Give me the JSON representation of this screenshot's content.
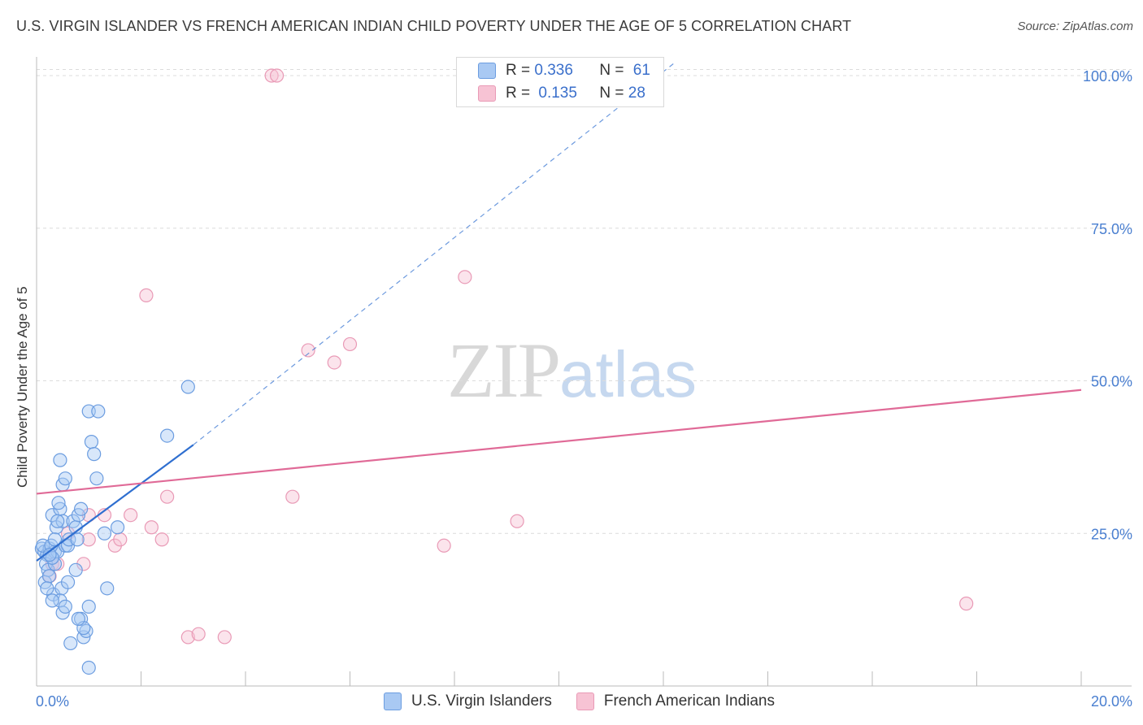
{
  "title": "U.S. VIRGIN ISLANDER VS FRENCH AMERICAN INDIAN CHILD POVERTY UNDER THE AGE OF 5 CORRELATION CHART",
  "source": "Source: ZipAtlas.com",
  "watermark": {
    "zip": "ZIP",
    "atlas": "atlas"
  },
  "colors": {
    "blue_fill": "#a9c9f3",
    "blue_stroke": "#6c9de0",
    "blue_line": "#2f6fd0",
    "pink_fill": "#f7c3d4",
    "pink_stroke": "#e99ab6",
    "pink_line": "#e06a97",
    "tick": "#4a7fd0"
  },
  "legend": {
    "rows": [
      {
        "r_label": "R =",
        "r_value": "0.336",
        "n_label": "N =",
        "n_value": "61"
      },
      {
        "r_label": "R =",
        "r_value": "0.135",
        "n_label": "N =",
        "n_value": "28"
      }
    ]
  },
  "bottom_legend": [
    "U.S. Virgin Islanders",
    "French American Indians"
  ],
  "chart_data": {
    "type": "scatter",
    "title": "U.S. VIRGIN ISLANDER VS FRENCH AMERICAN INDIAN CHILD POVERTY UNDER THE AGE OF 5 CORRELATION CHART",
    "xlabel": "",
    "ylabel": "Child Poverty Under the Age of 5",
    "xlim": [
      0,
      20
    ],
    "ylim": [
      0,
      102
    ],
    "x_tick_labels": [
      "0.0%",
      "20.0%"
    ],
    "y_ticks": [
      25,
      50,
      75,
      100
    ],
    "y_tick_labels": [
      "25.0%",
      "50.0%",
      "75.0%",
      "100.0%"
    ],
    "series": [
      {
        "name": "U.S. Virgin Islanders",
        "points": [
          [
            0.1,
            22.5
          ],
          [
            0.15,
            22
          ],
          [
            0.2,
            21.5
          ],
          [
            0.25,
            22.5
          ],
          [
            0.3,
            21
          ],
          [
            0.12,
            23
          ],
          [
            0.18,
            20
          ],
          [
            0.22,
            19
          ],
          [
            0.35,
            22
          ],
          [
            0.4,
            22
          ],
          [
            0.28,
            23
          ],
          [
            0.16,
            17
          ],
          [
            0.24,
            18
          ],
          [
            0.32,
            15
          ],
          [
            0.3,
            28
          ],
          [
            0.38,
            26
          ],
          [
            0.45,
            29
          ],
          [
            0.42,
            30
          ],
          [
            0.5,
            27
          ],
          [
            0.55,
            23
          ],
          [
            0.48,
            16
          ],
          [
            0.45,
            14
          ],
          [
            0.45,
            37
          ],
          [
            0.5,
            33
          ],
          [
            0.55,
            34
          ],
          [
            0.6,
            23
          ],
          [
            0.62,
            24
          ],
          [
            0.7,
            27
          ],
          [
            0.75,
            26
          ],
          [
            0.8,
            28
          ],
          [
            0.78,
            24
          ],
          [
            0.75,
            19
          ],
          [
            0.85,
            29
          ],
          [
            0.85,
            11
          ],
          [
            0.9,
            8
          ],
          [
            0.95,
            9
          ],
          [
            1.0,
            13
          ],
          [
            1.05,
            40
          ],
          [
            1.0,
            45
          ],
          [
            1.1,
            38
          ],
          [
            1.15,
            34
          ],
          [
            1.18,
            45
          ],
          [
            1.3,
            25
          ],
          [
            1.35,
            16
          ],
          [
            1.55,
            26
          ],
          [
            0.9,
            9.5
          ],
          [
            0.8,
            11
          ],
          [
            0.65,
            7
          ],
          [
            0.5,
            12
          ],
          [
            0.55,
            13
          ],
          [
            0.6,
            17
          ],
          [
            0.2,
            16
          ],
          [
            0.3,
            14
          ],
          [
            0.35,
            20
          ],
          [
            1.0,
            3
          ],
          [
            2.5,
            41
          ],
          [
            2.9,
            49
          ],
          [
            0.4,
            27
          ],
          [
            0.3,
            21
          ],
          [
            0.25,
            21.5
          ],
          [
            0.35,
            24
          ]
        ],
        "trend": {
          "x": [
            0,
            3.0
          ],
          "y": [
            20.5,
            39.5
          ],
          "extended_to": [
            12.2,
            102
          ]
        }
      },
      {
        "name": "French American Indians",
        "points": [
          [
            0.25,
            18
          ],
          [
            0.3,
            20
          ],
          [
            0.4,
            20
          ],
          [
            0.6,
            25
          ],
          [
            0.9,
            20
          ],
          [
            1.0,
            28
          ],
          [
            1.0,
            24
          ],
          [
            1.3,
            28
          ],
          [
            1.5,
            23
          ],
          [
            1.6,
            24
          ],
          [
            1.8,
            28
          ],
          [
            2.1,
            64
          ],
          [
            2.2,
            26
          ],
          [
            2.4,
            24
          ],
          [
            2.5,
            31
          ],
          [
            2.9,
            8
          ],
          [
            3.1,
            8.5
          ],
          [
            3.6,
            8
          ],
          [
            4.5,
            100
          ],
          [
            4.6,
            100
          ],
          [
            4.9,
            31
          ],
          [
            5.2,
            55
          ],
          [
            5.7,
            53
          ],
          [
            6.0,
            56
          ],
          [
            7.8,
            23
          ],
          [
            8.2,
            67
          ],
          [
            9.2,
            27
          ],
          [
            17.8,
            13.5
          ]
        ],
        "trend": {
          "x": [
            0,
            20
          ],
          "y": [
            31.5,
            48.5
          ]
        }
      }
    ]
  }
}
